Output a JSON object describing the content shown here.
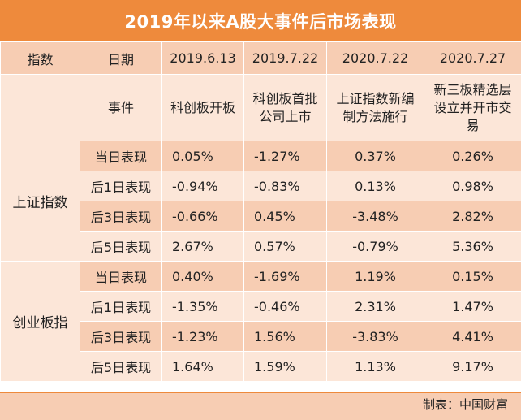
{
  "title": "2019年以来A股大事件后市场表现",
  "header": {
    "col_index": "指数",
    "col_date": "日期",
    "dates": [
      "2019.6.13",
      "2019.7.22",
      "2020.7.22",
      "2020.7.27"
    ]
  },
  "events": {
    "label": "事件",
    "items": [
      [
        "科创板开板"
      ],
      [
        "科创板首批",
        "公司上市"
      ],
      [
        "上证指数新编",
        "制方法施行"
      ],
      [
        "新三板精选层",
        "设立并开市交",
        "易"
      ]
    ]
  },
  "groups": [
    {
      "name": "上证指数",
      "rows": [
        {
          "label": "当日表现",
          "values": [
            "0.05%",
            "-1.27%",
            "0.37%",
            "0.26%"
          ]
        },
        {
          "label": "后1日表现",
          "values": [
            "-0.94%",
            "-0.83%",
            "0.13%",
            "0.98%"
          ]
        },
        {
          "label": "后3日表现",
          "values": [
            "-0.66%",
            "0.45%",
            "-3.48%",
            "2.82%"
          ]
        },
        {
          "label": "后5日表现",
          "values": [
            "2.67%",
            "0.57%",
            "-0.79%",
            "5.36%"
          ]
        }
      ]
    },
    {
      "name": "创业板指",
      "rows": [
        {
          "label": "当日表现",
          "values": [
            "0.40%",
            "-1.69%",
            "1.19%",
            "0.15%"
          ]
        },
        {
          "label": "后1日表现",
          "values": [
            "-1.35%",
            "-0.46%",
            "2.31%",
            "1.47%"
          ]
        },
        {
          "label": "后3日表现",
          "values": [
            "-1.23%",
            "1.56%",
            "-3.83%",
            "4.41%"
          ]
        },
        {
          "label": "后5日表现",
          "values": [
            "1.64%",
            "1.59%",
            "1.13%",
            "9.17%"
          ]
        }
      ]
    }
  ],
  "footer": "制表：中国财富"
}
